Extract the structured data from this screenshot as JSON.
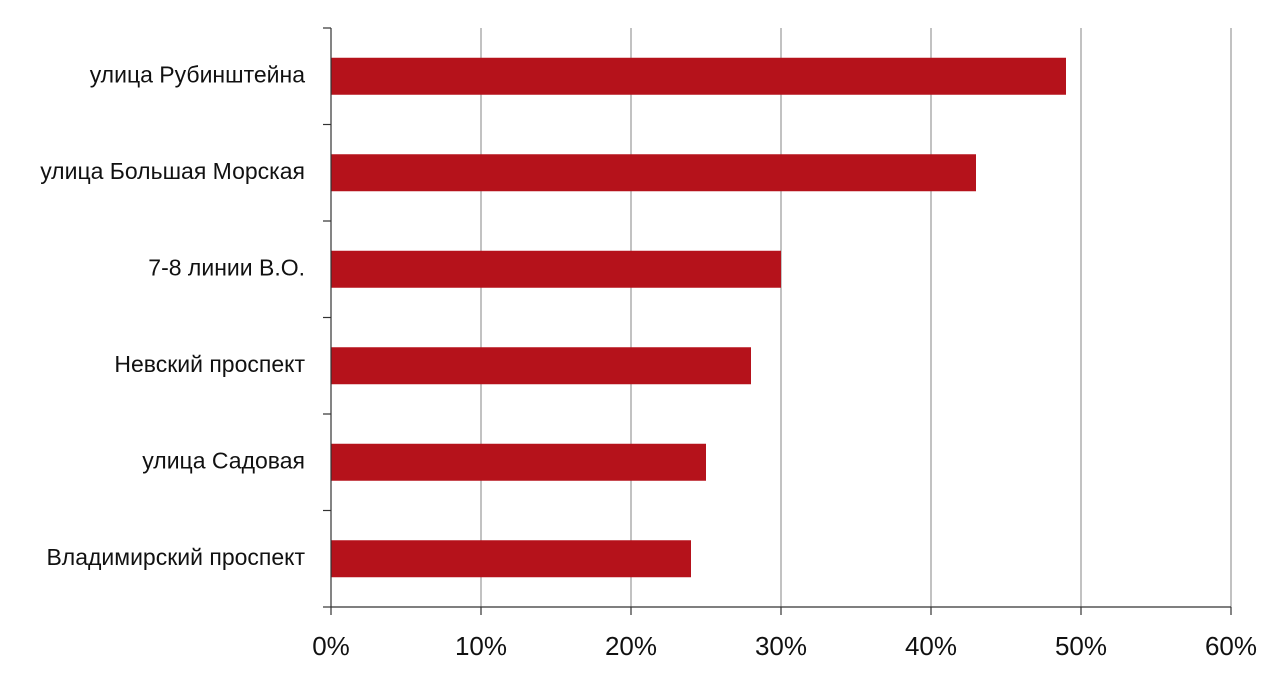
{
  "chart_data": {
    "type": "bar",
    "orientation": "horizontal",
    "categories": [
      "улица Рубинштейна",
      "улица Большая Морская",
      "7-8 линии В.О.",
      "Невский проспект",
      "улица Садовая",
      "Владимирский проспект"
    ],
    "values": [
      49,
      43,
      30,
      28,
      25,
      24
    ],
    "color": "#b5121b",
    "xlim": [
      0,
      60
    ],
    "xticks": [
      {
        "value": 0,
        "label": "0%"
      },
      {
        "value": 10,
        "label": "10%"
      },
      {
        "value": 20,
        "label": "20%"
      },
      {
        "value": 30,
        "label": "30%"
      },
      {
        "value": 40,
        "label": "40%"
      },
      {
        "value": 50,
        "label": "50%"
      },
      {
        "value": 60,
        "label": "60%"
      }
    ],
    "grid": true
  }
}
